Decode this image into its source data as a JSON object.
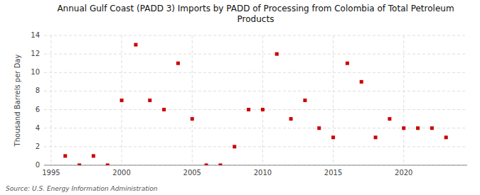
{
  "chart_data": {
    "type": "scatter",
    "title": "Annual Gulf Coast (PADD 3) Imports by PADD of Processing from Colombia of Total Petroleum\nProducts",
    "ylabel": "Thousand Barrels per Day",
    "source": "Source: U.S. Energy Information Administration",
    "x": [
      1996,
      1997,
      1998,
      1999,
      2000,
      2001,
      2002,
      2003,
      2004,
      2005,
      2006,
      2007,
      2008,
      2009,
      2010,
      2011,
      2012,
      2013,
      2014,
      2015,
      2016,
      2017,
      2018,
      2019,
      2020,
      2021,
      2022,
      2023
    ],
    "values": [
      1,
      0,
      1,
      0,
      7,
      13,
      7,
      6,
      11,
      5,
      0,
      0,
      2,
      6,
      6,
      12,
      5,
      7,
      4,
      3,
      11,
      9,
      3,
      5,
      4,
      4,
      4,
      3
    ],
    "color": "#cc0000",
    "marker": "square",
    "xlim": [
      1994.5,
      2024.5
    ],
    "ylim": [
      0,
      14
    ],
    "xticks": [
      1995,
      2000,
      2005,
      2010,
      2015,
      2020
    ],
    "yticks": [
      0,
      2,
      4,
      6,
      8,
      10,
      12,
      14
    ],
    "grid": true
  }
}
